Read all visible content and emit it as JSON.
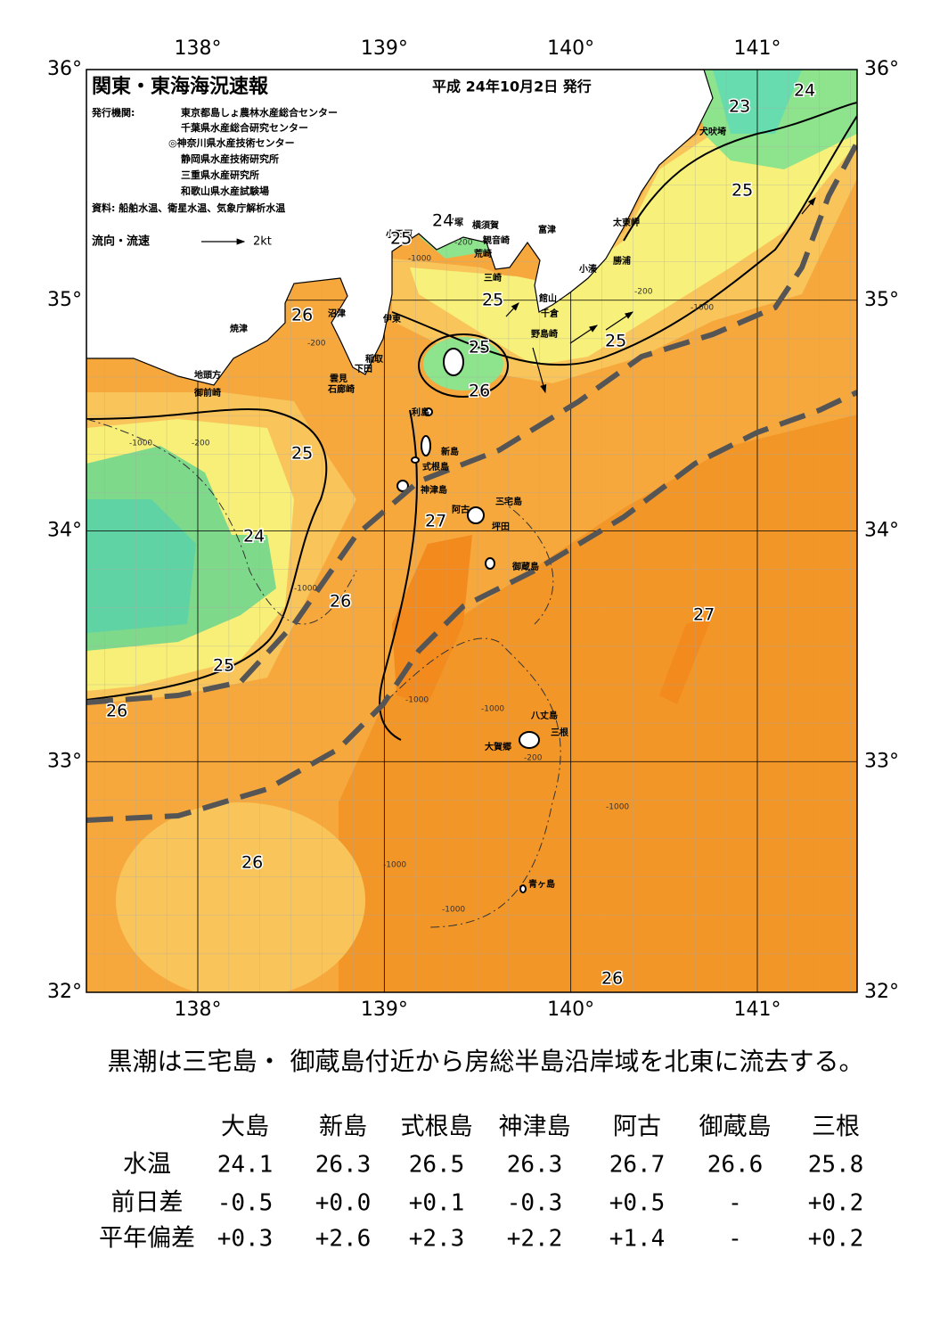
{
  "header": {
    "title": "関東・東海海況速報",
    "issued": "平成 24年10月2日 発行",
    "publisher_label": "発行機関:",
    "publishers": [
      "東京都島しょ農林水産総合センター",
      "千葉県水産総合研究センター",
      "◎神奈川県水産技術センター",
      "静岡県水産技術研究所",
      "三重県水産研究所",
      "和歌山県水産試験場"
    ],
    "source": "資料: 船舶水温、衛星水温、気象庁解析水温",
    "legend_label": "流向・流速",
    "legend_scale": "2kt"
  },
  "map": {
    "lon_ticks": [
      {
        "value": 138,
        "label": "138°"
      },
      {
        "value": 139,
        "label": "139°"
      },
      {
        "value": 140,
        "label": "140°"
      },
      {
        "value": 141,
        "label": "141°"
      }
    ],
    "lat_ticks": [
      {
        "value": 36,
        "label": "36°"
      },
      {
        "value": 35,
        "label": "35°"
      },
      {
        "value": 34,
        "label": "34°"
      },
      {
        "value": 33,
        "label": "33°"
      },
      {
        "value": 32,
        "label": "32°"
      }
    ],
    "place_names": [
      "犬吠埼",
      "太東岬",
      "勝浦",
      "小湊",
      "富津",
      "横須賀",
      "観音崎",
      "荒崎",
      "小田原",
      "平塚",
      "三崎",
      "館山",
      "千倉",
      "野島崎",
      "沼津",
      "伊東",
      "焼津",
      "稲取",
      "下田",
      "雲見",
      "石廊崎",
      "地頭方",
      "御前崎",
      "利島",
      "新島",
      "式根島",
      "神津島",
      "阿古",
      "三宅島",
      "坪田",
      "御蔵島",
      "八丈島",
      "三根",
      "大賀郷",
      "青ヶ島"
    ],
    "isotherm_labels": [
      23,
      24,
      25,
      24,
      25,
      25,
      26,
      25,
      25,
      26,
      25,
      27,
      24,
      26,
      27,
      25,
      26,
      26,
      26
    ],
    "depth_labels": [
      "-200",
      "-1000"
    ]
  },
  "summary": "黒潮は三宅島・ 御蔵島付近から房総半島沿岸域を北東に流去する。",
  "table": {
    "columns": [
      "大島",
      "新島",
      "式根島",
      "神津島",
      "阿古",
      "御蔵島",
      "三根"
    ],
    "rows": [
      {
        "label": "水温",
        "cells": [
          "24.1",
          "26.3",
          "26.5",
          "26.3",
          "26.7",
          "26.6",
          "25.8"
        ]
      },
      {
        "label": "前日差",
        "cells": [
          "-0.5",
          "+0.0",
          "+0.1",
          "-0.3",
          "+0.5",
          "-",
          "+0.2"
        ]
      },
      {
        "label": "平年偏差",
        "cells": [
          "+0.3",
          "+2.6",
          "+2.3",
          "+2.2",
          "+1.4",
          "-",
          "+0.2"
        ]
      }
    ]
  }
}
